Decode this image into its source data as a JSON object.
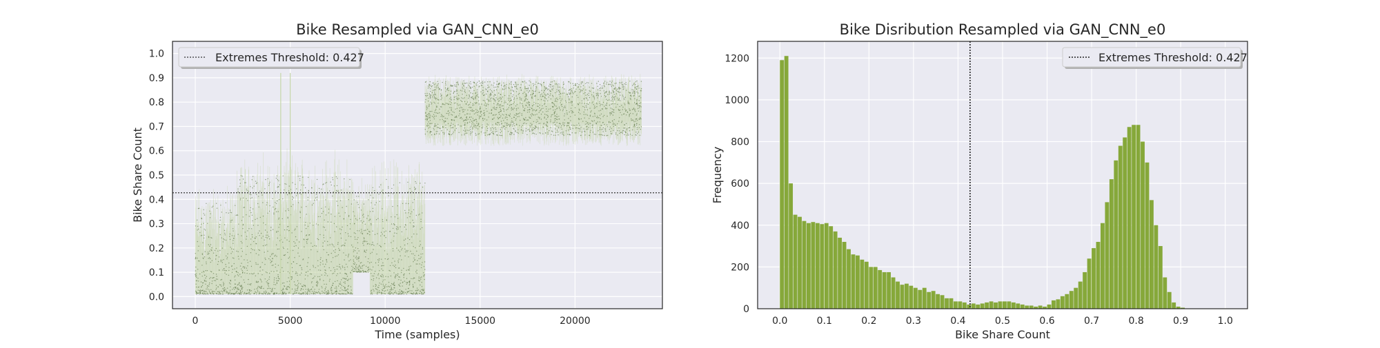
{
  "chart_data": [
    {
      "type": "scatter",
      "title": "Bike Resampled via GAN_CNN_e0",
      "xlabel": "Time (samples)",
      "ylabel": "Bike Share Count",
      "xlim": [
        -1200,
        24600
      ],
      "ylim": [
        -0.05,
        1.05
      ],
      "xticks": [
        0,
        5000,
        10000,
        15000,
        20000
      ],
      "yticks": [
        0.0,
        0.1,
        0.2,
        0.3,
        0.4,
        0.5,
        0.6,
        0.7,
        0.8,
        0.9,
        1.0
      ],
      "threshold": 0.427,
      "legend": {
        "label": "Extremes Threshold: 0.427",
        "placement": "top-left"
      },
      "grid": true,
      "colors": {
        "bars": "#c5d6a8",
        "points": "#6b8157",
        "threshold": "#333333",
        "background": "#eaeaf2"
      },
      "segments": [
        {
          "x": [
            0,
            2200
          ],
          "low": 0.01,
          "high": [
            0.3,
            0.48
          ]
        },
        {
          "x": [
            2200,
            8300
          ],
          "low": 0.01,
          "high": [
            0.4,
            0.62
          ]
        },
        {
          "x": [
            8300,
            9200
          ],
          "low": 0.1,
          "high": [
            0.4,
            0.5
          ]
        },
        {
          "x": [
            9200,
            12100
          ],
          "low": 0.01,
          "high": [
            0.4,
            0.6
          ]
        },
        {
          "x": [
            12100,
            23500
          ],
          "low": [
            0.62,
            0.72
          ],
          "high": [
            0.88,
            0.92
          ]
        }
      ],
      "spikes": [
        {
          "x": 4500,
          "high": 0.92
        },
        {
          "x": 5000,
          "high": 0.92
        }
      ]
    },
    {
      "type": "bar",
      "title": "Bike Disribution Resampled via GAN_CNN_e0",
      "xlabel": "Bike Share Count",
      "ylabel": "Frequency",
      "xlim": [
        -0.05,
        1.05
      ],
      "ylim": [
        0,
        1280
      ],
      "xticks": [
        0.0,
        0.1,
        0.2,
        0.3,
        0.4,
        0.5,
        0.6,
        0.7,
        0.8,
        0.9,
        1.0
      ],
      "yticks": [
        0,
        200,
        400,
        600,
        800,
        1000,
        1200
      ],
      "threshold": 0.427,
      "legend": {
        "label": "Extremes Threshold: 0.427",
        "placement": "top-right"
      },
      "grid": true,
      "colors": {
        "bars": "#86a83a",
        "threshold": "#222222",
        "background": "#eaeaf2"
      },
      "bin_start": 0.0,
      "bin_width": 0.01,
      "values": [
        1190,
        1210,
        600,
        450,
        440,
        420,
        410,
        415,
        410,
        405,
        410,
        395,
        370,
        340,
        320,
        285,
        260,
        255,
        235,
        225,
        200,
        200,
        185,
        175,
        175,
        150,
        130,
        115,
        120,
        110,
        100,
        90,
        100,
        80,
        85,
        70,
        65,
        50,
        50,
        35,
        35,
        30,
        20,
        25,
        20,
        25,
        30,
        35,
        30,
        35,
        35,
        35,
        30,
        25,
        20,
        15,
        15,
        10,
        15,
        10,
        20,
        40,
        45,
        60,
        70,
        85,
        100,
        130,
        175,
        240,
        290,
        320,
        410,
        510,
        620,
        710,
        780,
        820,
        870,
        880,
        880,
        800,
        700,
        520,
        400,
        300,
        150,
        80,
        30,
        10,
        5,
        0,
        0,
        0,
        0,
        0,
        0,
        0,
        0,
        0
      ]
    }
  ]
}
